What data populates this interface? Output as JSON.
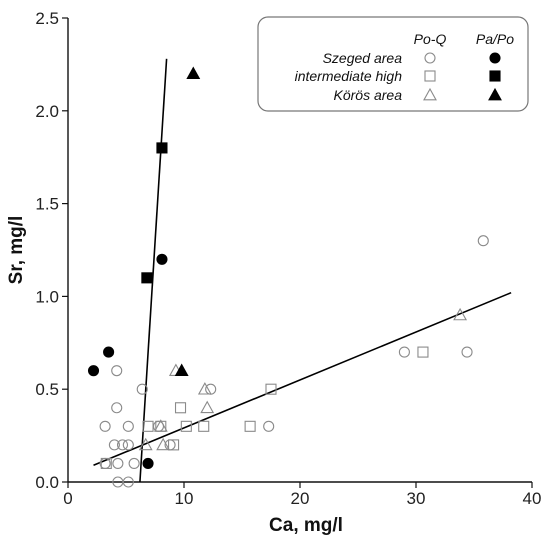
{
  "chart_data": {
    "type": "scatter",
    "title": "",
    "xlabel": "Ca, mg/l",
    "ylabel": "Sr, mg/l",
    "xlim": [
      0,
      40
    ],
    "ylim": [
      0,
      2.5
    ],
    "x_ticks": [
      "0",
      "10",
      "20",
      "30",
      "40"
    ],
    "y_ticks": [
      "0.0",
      "0.5",
      "1.0",
      "1.5",
      "2.0",
      "2.5"
    ],
    "grid": false,
    "legend_position": "top-right",
    "legend": {
      "column_headers": [
        "Po-Q",
        "Pa/Po"
      ],
      "rows": [
        "Szeged area",
        "intermediate high",
        "Körös area"
      ]
    },
    "series": [
      {
        "name": "Szeged area Po-Q",
        "marker": "circle",
        "filled": false,
        "points": [
          [
            4.2,
            0.6
          ],
          [
            4.2,
            0.4
          ],
          [
            3.2,
            0.3
          ],
          [
            5.2,
            0.3
          ],
          [
            4.0,
            0.2
          ],
          [
            4.7,
            0.2
          ],
          [
            5.2,
            0.2
          ],
          [
            3.2,
            0.1
          ],
          [
            4.3,
            0.1
          ],
          [
            5.7,
            0.1
          ],
          [
            4.3,
            0.0
          ],
          [
            5.2,
            0.0
          ],
          [
            6.4,
            0.5
          ],
          [
            7.8,
            0.3
          ],
          [
            8.8,
            0.2
          ],
          [
            12.3,
            0.5
          ],
          [
            17.3,
            0.3
          ],
          [
            29.0,
            0.7
          ],
          [
            34.4,
            0.7
          ],
          [
            35.8,
            1.3
          ]
        ]
      },
      {
        "name": "Szeged area Pa/Po",
        "marker": "circle",
        "filled": true,
        "points": [
          [
            2.2,
            0.6
          ],
          [
            3.5,
            0.7
          ],
          [
            8.1,
            1.2
          ],
          [
            6.9,
            0.1
          ]
        ]
      },
      {
        "name": "intermediate high Po-Q",
        "marker": "square",
        "filled": false,
        "points": [
          [
            3.3,
            0.1
          ],
          [
            6.9,
            0.3
          ],
          [
            8.0,
            0.3
          ],
          [
            9.1,
            0.2
          ],
          [
            9.7,
            0.4
          ],
          [
            10.2,
            0.3
          ],
          [
            11.7,
            0.3
          ],
          [
            15.7,
            0.3
          ],
          [
            17.5,
            0.5
          ],
          [
            30.6,
            0.7
          ]
        ]
      },
      {
        "name": "intermediate high Pa/Po",
        "marker": "square",
        "filled": true,
        "points": [
          [
            6.8,
            1.1
          ],
          [
            8.1,
            1.8
          ]
        ]
      },
      {
        "name": "Körös area Po-Q",
        "marker": "triangle",
        "filled": false,
        "points": [
          [
            6.7,
            0.2
          ],
          [
            8.0,
            0.3
          ],
          [
            8.2,
            0.2
          ],
          [
            9.3,
            0.6
          ],
          [
            11.8,
            0.5
          ],
          [
            12.0,
            0.4
          ],
          [
            33.8,
            0.9
          ]
        ]
      },
      {
        "name": "Körös area Pa/Po",
        "marker": "triangle",
        "filled": true,
        "points": [
          [
            9.8,
            0.6
          ],
          [
            10.8,
            2.2
          ]
        ]
      }
    ],
    "trend_lines": [
      {
        "points": [
          [
            6.2,
            0.0
          ],
          [
            8.5,
            2.28
          ]
        ]
      },
      {
        "points": [
          [
            2.2,
            0.09
          ],
          [
            38.2,
            1.02
          ]
        ]
      }
    ]
  }
}
